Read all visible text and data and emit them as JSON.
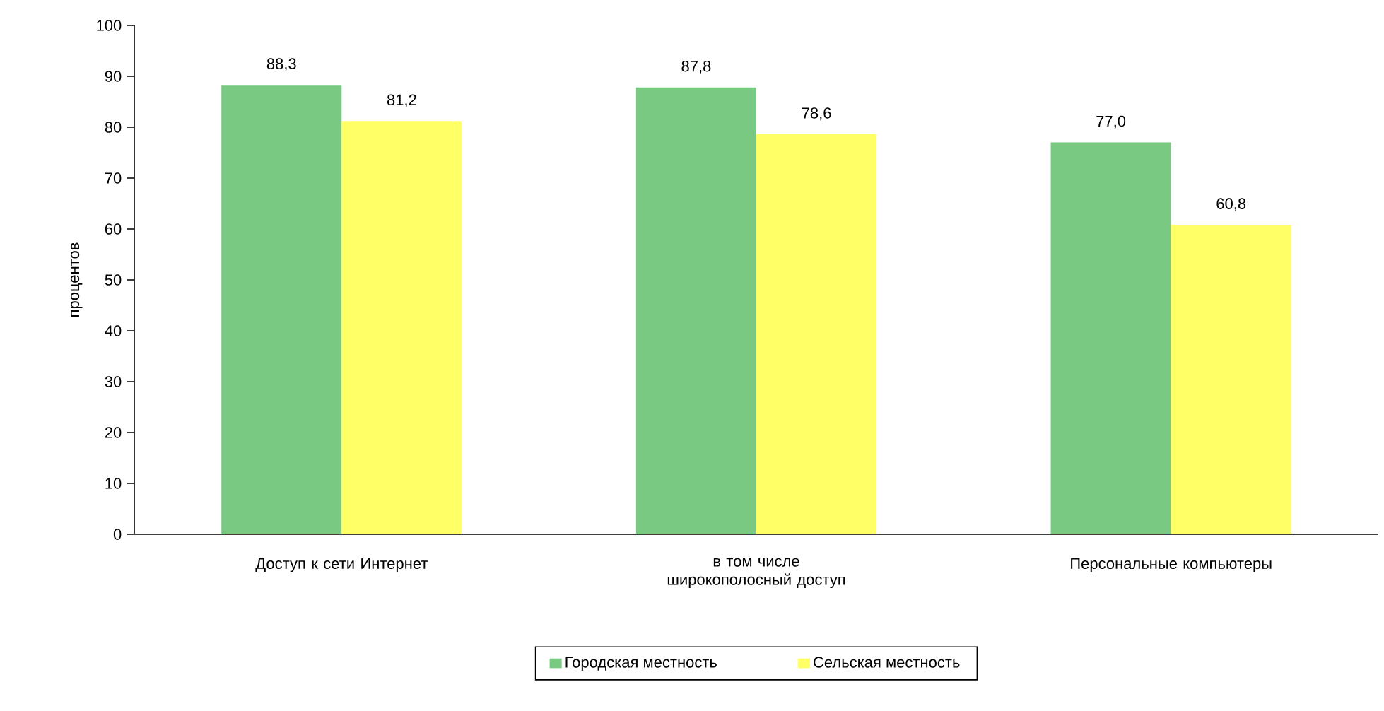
{
  "chart_data": {
    "type": "bar",
    "ylabel": "процентов",
    "categories": [
      "Доступ к сети Интернет",
      "в том числе широкополосный доступ",
      "Персональные компьютеры"
    ],
    "series": [
      {
        "name": "Городская местность",
        "color": "#7ac982",
        "values": [
          88.3,
          87.8,
          77.0
        ],
        "value_labels": [
          "88,3",
          "87,8",
          "77,0"
        ]
      },
      {
        "name": "Сельская местность",
        "color": "#ffff66",
        "values": [
          81.2,
          78.6,
          60.8
        ],
        "value_labels": [
          "81,2",
          "78,6",
          "60,8"
        ]
      }
    ],
    "ylim": [
      0,
      100
    ],
    "yticks": [
      0,
      10,
      20,
      30,
      40,
      50,
      60,
      70,
      80,
      90,
      100
    ],
    "grid": false,
    "legend": "bottom"
  }
}
